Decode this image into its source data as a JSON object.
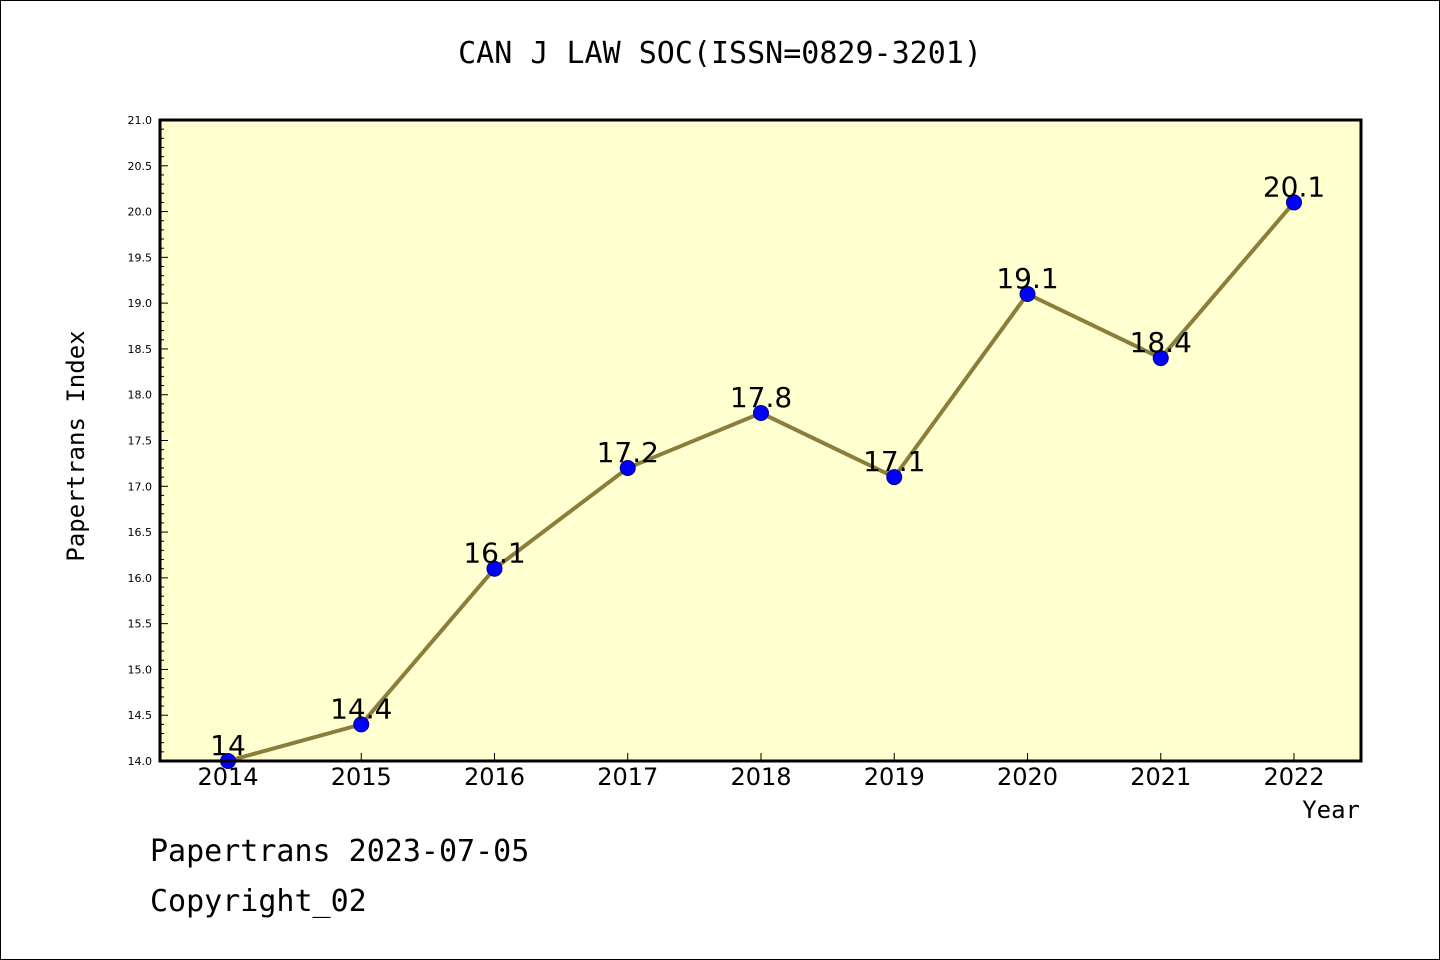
{
  "footer": {
    "line1": "Papertrans 2023-07-05",
    "line2": "Copyright_02"
  },
  "colors": {
    "plot_bg": "#ffffd0",
    "line": "#8b7d3a",
    "marker": "#0000ff"
  },
  "chart_data": {
    "type": "line",
    "title": "CAN J LAW SOC(ISSN=0829-3201)",
    "xlabel": "Year",
    "ylabel": "Papertrans Index",
    "categories": [
      "2014",
      "2015",
      "2016",
      "2017",
      "2018",
      "2019",
      "2020",
      "2021",
      "2022"
    ],
    "series": [
      {
        "values": [
          14,
          14.4,
          16.1,
          17.2,
          17.8,
          17.1,
          19.1,
          18.4,
          20.1
        ],
        "labels": [
          "14",
          "14.4",
          "16.1",
          "17.2",
          "17.8",
          "17.1",
          "19.1",
          "18.4",
          "20.1"
        ]
      }
    ],
    "ylim": [
      14.0,
      21.0
    ],
    "yticks": [
      "14.0",
      "14.5",
      "15.0",
      "15.5",
      "16.0",
      "16.5",
      "17.0",
      "17.5",
      "18.0",
      "18.5",
      "19.0",
      "19.5",
      "20.0",
      "20.5",
      "21.0"
    ],
    "grid": false,
    "legend": "none"
  }
}
